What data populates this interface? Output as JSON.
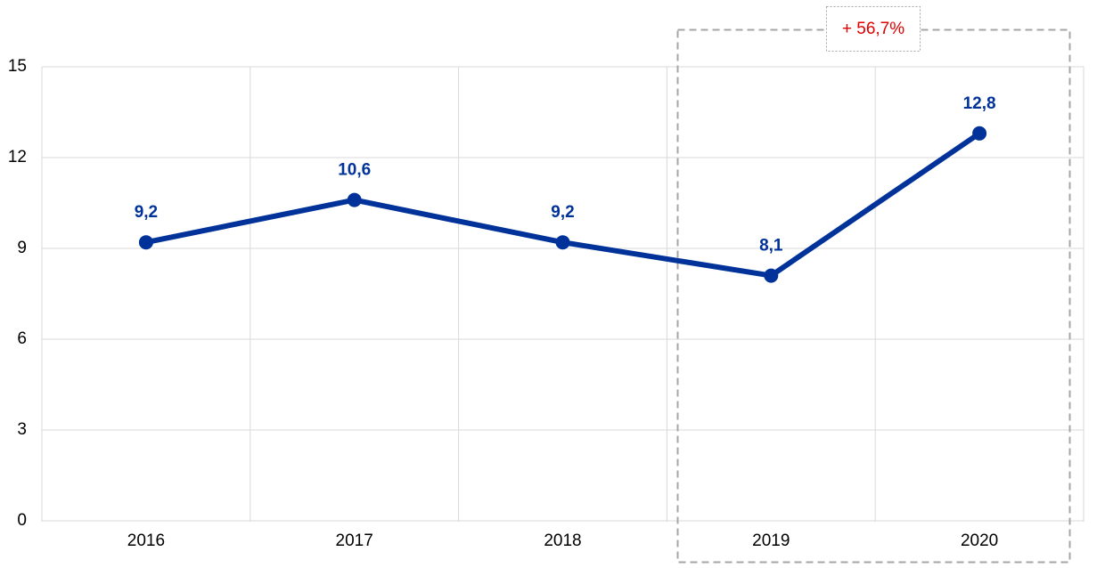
{
  "chart_data": {
    "type": "line",
    "categories": [
      "2016",
      "2017",
      "2018",
      "2019",
      "2020"
    ],
    "series": [
      {
        "color": "#003299",
        "values": [
          9.2,
          10.6,
          9.2,
          8.1,
          12.8
        ],
        "value_labels": [
          "9,2",
          "10,6",
          "9,2",
          "8,1",
          "12,8"
        ]
      }
    ],
    "ylim": [
      0,
      15
    ],
    "yticks": [
      0,
      3,
      6,
      9,
      12,
      15
    ],
    "grid": true,
    "annotation": "+ 56,7%"
  }
}
